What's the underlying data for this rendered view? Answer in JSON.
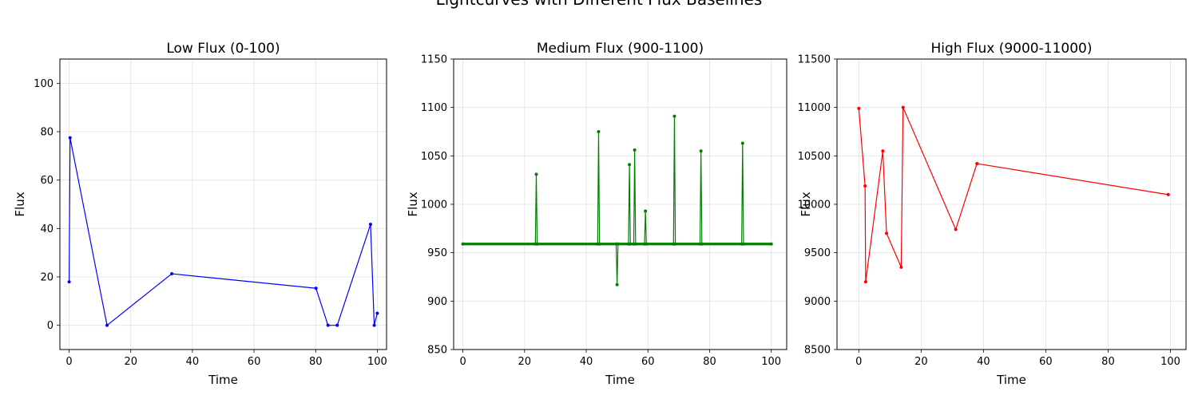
{
  "figure": {
    "suptitle": "Lightcurves with Different Flux Baselines"
  },
  "chart_data": [
    {
      "type": "line",
      "title": "Low Flux (0-100)",
      "xlabel": "Time",
      "ylabel": "Flux",
      "xlim": [
        -3,
        103
      ],
      "ylim": [
        -10,
        110
      ],
      "xticks": [
        0,
        20,
        40,
        60,
        80,
        100
      ],
      "yticks": [
        0,
        20,
        40,
        60,
        80,
        100
      ],
      "grid": true,
      "color": "#0000ff",
      "series": [
        {
          "x": [
            0.0,
            0.3,
            12.3,
            33.3,
            80.1,
            84.0,
            87.0,
            97.8,
            99.0,
            100.0
          ],
          "y": [
            18.0,
            77.5,
            0.0,
            21.3,
            15.3,
            0.0,
            0.0,
            41.7,
            0.0,
            5.0
          ]
        }
      ]
    },
    {
      "type": "line",
      "title": "Medium Flux (900-1100)",
      "xlabel": "Time",
      "ylabel": "Flux",
      "xlim": [
        -3,
        105
      ],
      "ylim": [
        850,
        1150
      ],
      "xticks": [
        0,
        20,
        40,
        60,
        80,
        100
      ],
      "yticks": [
        850,
        900,
        950,
        1000,
        1050,
        1100,
        1150
      ],
      "grid": true,
      "color": "#008000",
      "baseline": 959,
      "series": [
        {
          "x": [
            0.0,
            23.5,
            23.8,
            24.1,
            43.7,
            44.0,
            44.3,
            49.7,
            50.0,
            50.3,
            53.7,
            54.0,
            54.3,
            55.4,
            55.7,
            56.0,
            58.9,
            59.2,
            59.5,
            68.3,
            68.6,
            68.9,
            76.9,
            77.2,
            77.5,
            90.4,
            90.7,
            91.0,
            100.0
          ],
          "y": [
            959,
            959,
            1031,
            959,
            959,
            1075,
            959,
            959,
            917,
            959,
            959,
            1041,
            959,
            959,
            1056,
            959,
            959,
            993,
            959,
            959,
            1091,
            959,
            959,
            1055,
            959,
            959,
            1063,
            959,
            959
          ]
        }
      ]
    },
    {
      "type": "line",
      "title": "High Flux (9000-11000)",
      "xlabel": "Time",
      "ylabel": "Flux",
      "xlim": [
        -7,
        105
      ],
      "ylim": [
        8500,
        11500
      ],
      "xticks": [
        0,
        20,
        40,
        60,
        80,
        100
      ],
      "yticks": [
        8500,
        9000,
        9500,
        10000,
        10500,
        11000,
        11500
      ],
      "grid": true,
      "color": "#ff0000",
      "series": [
        {
          "x": [
            0.0,
            2.0,
            2.2,
            7.7,
            8.9,
            13.6,
            14.2,
            31.1,
            37.9,
            99.3
          ],
          "y": [
            10990,
            10190,
            9200,
            10550,
            9700,
            9350,
            11000,
            9740,
            10420,
            10100
          ]
        }
      ]
    }
  ]
}
